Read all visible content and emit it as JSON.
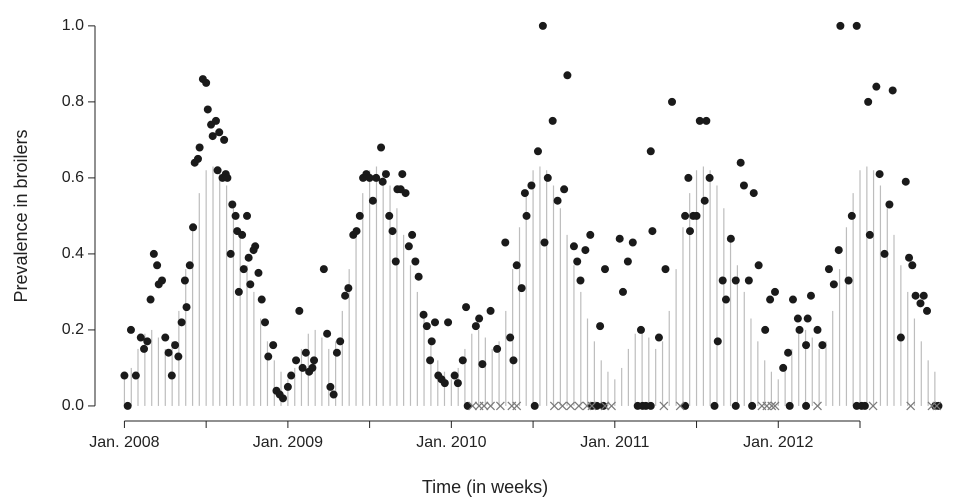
{
  "chart_data": {
    "type": "scatter",
    "xlabel": "Time (in weeks)",
    "ylabel": "Prevalence in broilers",
    "xlim": [
      2007.82,
      2013.02
    ],
    "ylim": [
      -0.037,
      1.047
    ],
    "xticks": [
      {
        "value": 2008,
        "label": "Jan. 2008"
      },
      {
        "value": 2009,
        "label": "Jan. 2009"
      },
      {
        "value": 2010,
        "label": "Jan. 2010"
      },
      {
        "value": 2011,
        "label": "Jan. 2011"
      },
      {
        "value": 2012,
        "label": "Jan. 2012"
      }
    ],
    "xminorticks": [
      2008.5,
      2009.5,
      2010.5,
      2011.5,
      2012.5
    ],
    "yticks": [
      {
        "value": 0,
        "label": "0.0"
      },
      {
        "value": 0.2,
        "label": "0.2"
      },
      {
        "value": 0.4,
        "label": "0.4"
      },
      {
        "value": 0.6,
        "label": "0.6"
      },
      {
        "value": 0.8,
        "label": "0.8"
      },
      {
        "value": 1,
        "label": "1.0"
      }
    ],
    "series": [
      {
        "marker": "stem",
        "color": "#bdbdbd",
        "x": [
          2008,
          2008.042,
          2008.083,
          2008.125,
          2008.167,
          2008.208,
          2008.25,
          2008.292,
          2008.333,
          2008.375,
          2008.417,
          2008.458,
          2008.5,
          2008.542,
          2008.583,
          2008.625,
          2008.667,
          2008.708,
          2008.75,
          2008.792,
          2008.833,
          2008.875,
          2008.917,
          2008.958,
          2009,
          2009.042,
          2009.083,
          2009.125,
          2009.167,
          2009.208,
          2009.25,
          2009.292,
          2009.333,
          2009.375,
          2009.417,
          2009.458,
          2009.5,
          2009.542,
          2009.583,
          2009.625,
          2009.667,
          2009.708,
          2009.75,
          2009.792,
          2009.833,
          2009.875,
          2009.917,
          2009.958,
          2010,
          2010.042,
          2010.083,
          2010.125,
          2010.167,
          2010.208,
          2010.25,
          2010.292,
          2010.333,
          2010.375,
          2010.417,
          2010.458,
          2010.5,
          2010.542,
          2010.583,
          2010.625,
          2010.667,
          2010.708,
          2010.75,
          2010.792,
          2010.833,
          2010.875,
          2010.917,
          2010.958,
          2011,
          2011.042,
          2011.083,
          2011.125,
          2011.167,
          2011.208,
          2011.25,
          2011.292,
          2011.333,
          2011.375,
          2011.417,
          2011.458,
          2011.5,
          2011.542,
          2011.583,
          2011.625,
          2011.667,
          2011.708,
          2011.75,
          2011.792,
          2011.833,
          2011.875,
          2011.917,
          2011.958,
          2012,
          2012.042,
          2012.083,
          2012.125,
          2012.167,
          2012.208,
          2012.25,
          2012.292,
          2012.333,
          2012.375,
          2012.417,
          2012.458,
          2012.5,
          2012.542,
          2012.583,
          2012.625,
          2012.667,
          2012.708,
          2012.75,
          2012.792,
          2012.833,
          2012.875,
          2012.917,
          2012.958
        ],
        "values": [
          0.07,
          0.1,
          0.15,
          0.19,
          0.2,
          0.18,
          0.15,
          0.17,
          0.25,
          0.36,
          0.47,
          0.56,
          0.62,
          0.63,
          0.62,
          0.58,
          0.52,
          0.45,
          0.37,
          0.3,
          0.23,
          0.17,
          0.12,
          0.09,
          0.07,
          0.1,
          0.15,
          0.19,
          0.2,
          0.18,
          0.15,
          0.17,
          0.25,
          0.36,
          0.47,
          0.56,
          0.62,
          0.63,
          0.62,
          0.58,
          0.52,
          0.45,
          0.37,
          0.3,
          0.23,
          0.17,
          0.12,
          0.09,
          0.07,
          0.1,
          0.15,
          0.19,
          0.2,
          0.18,
          0.15,
          0.17,
          0.25,
          0.36,
          0.47,
          0.56,
          0.62,
          0.63,
          0.62,
          0.58,
          0.52,
          0.45,
          0.37,
          0.3,
          0.23,
          0.17,
          0.12,
          0.09,
          0.07,
          0.1,
          0.15,
          0.19,
          0.2,
          0.18,
          0.15,
          0.17,
          0.25,
          0.36,
          0.47,
          0.56,
          0.62,
          0.63,
          0.62,
          0.58,
          0.52,
          0.45,
          0.37,
          0.3,
          0.23,
          0.17,
          0.12,
          0.09,
          0.07,
          0.1,
          0.15,
          0.19,
          0.2,
          0.18,
          0.15,
          0.17,
          0.25,
          0.36,
          0.47,
          0.56,
          0.62,
          0.63,
          0.62,
          0.58,
          0.52,
          0.45,
          0.37,
          0.3,
          0.23,
          0.17,
          0.12,
          0.09
        ]
      },
      {
        "marker": "dot",
        "color": "#1a1a1a",
        "x": [
          2008,
          2008.04,
          2008.07,
          2008.1,
          2008.12,
          2008.14,
          2008.16,
          2008.18,
          2008.2,
          2008.21,
          2008.23,
          2008.25,
          2008.27,
          2008.29,
          2008.31,
          2008.33,
          2008.35,
          2008.37,
          2008.38,
          2008.4,
          2008.42,
          2008.43,
          2008.45,
          2008.46,
          2008.48,
          2008.5,
          2008.51,
          2008.53,
          2008.54,
          2008.56,
          2008.57,
          2008.58,
          2008.6,
          2008.61,
          2008.62,
          2008.63,
          2008.65,
          2008.66,
          2008.68,
          2008.69,
          2008.7,
          2008.72,
          2008.73,
          2008.75,
          2008.76,
          2008.77,
          2008.79,
          2008.8,
          2008.82,
          2008.84,
          2008.86,
          2008.88,
          2008.91,
          2008.93,
          2008.95,
          2008.97,
          2009,
          2009.02,
          2009.05,
          2009.07,
          2009.09,
          2009.11,
          2009.13,
          2009.15,
          2009.16,
          2009.22,
          2009.24,
          2009.26,
          2009.28,
          2009.3,
          2009.32,
          2009.35,
          2009.37,
          2009.4,
          2009.42,
          2009.44,
          2009.46,
          2009.48,
          2009.5,
          2009.52,
          2009.54,
          2009.57,
          2009.58,
          2009.6,
          2009.62,
          2009.64,
          2009.66,
          2009.67,
          2009.69,
          2009.7,
          2009.72,
          2009.74,
          2009.76,
          2009.78,
          2009.8,
          2009.83,
          2009.85,
          2009.87,
          2009.88,
          2009.9,
          2009.92,
          2009.94,
          2009.96,
          2009.98,
          2010.02,
          2010.04,
          2010.07,
          2010.09,
          2010.15,
          2010.17,
          2010.19,
          2010.24,
          2010.28,
          2010.33,
          2010.36,
          2010.38,
          2010.4,
          2010.43,
          2010.45,
          2010.46,
          2010.49,
          2010.53,
          2010.56,
          2010.57,
          2010.59,
          2010.62,
          2010.65,
          2010.69,
          2010.71,
          2010.75,
          2010.77,
          2010.79,
          2010.82,
          2010.85,
          2010.91,
          2010.94,
          2011.03,
          2011.05,
          2011.08,
          2011.11,
          2011.16,
          2011.22,
          2011.23,
          2011.27,
          2011.31,
          2011.35,
          2011.43,
          2011.45,
          2011.46,
          2011.48,
          2011.5,
          2011.52,
          2011.55,
          2011.56,
          2011.58,
          2011.63,
          2011.66,
          2011.68,
          2011.71,
          2011.74,
          2011.77,
          2011.79,
          2011.82,
          2011.85,
          2011.88,
          2011.92,
          2011.95,
          2011.98,
          2012.03,
          2012.06,
          2012.09,
          2012.12,
          2012.13,
          2012.17,
          2012.18,
          2012.2,
          2012.24,
          2012.27,
          2012.31,
          2012.34,
          2012.37,
          2012.38,
          2012.43,
          2012.45,
          2012.48,
          2012.55,
          2012.56,
          2012.6,
          2012.62,
          2012.65,
          2012.68,
          2012.7,
          2012.75,
          2012.78,
          2012.8,
          2012.82,
          2012.84,
          2012.87,
          2012.89,
          2012.91,
          2008.02,
          2010.1,
          2010.51,
          2010.86,
          2010.89,
          2010.93,
          2011.14,
          2011.17,
          2011.19,
          2011.22,
          2011.43,
          2011.61,
          2011.74,
          2011.84,
          2012.07,
          2012.17,
          2012.48,
          2012.51,
          2012.53,
          2012.96,
          2012.98
        ],
        "values": [
          0.08,
          0.2,
          0.08,
          0.18,
          0.15,
          0.17,
          0.28,
          0.4,
          0.37,
          0.32,
          0.33,
          0.18,
          0.14,
          0.08,
          0.16,
          0.13,
          0.22,
          0.33,
          0.26,
          0.37,
          0.47,
          0.64,
          0.65,
          0.68,
          0.86,
          0.85,
          0.78,
          0.74,
          0.71,
          0.75,
          0.62,
          0.72,
          0.6,
          0.7,
          0.61,
          0.6,
          0.4,
          0.53,
          0.5,
          0.46,
          0.3,
          0.45,
          0.36,
          0.5,
          0.39,
          0.32,
          0.41,
          0.42,
          0.35,
          0.28,
          0.22,
          0.13,
          0.16,
          0.04,
          0.03,
          0.02,
          0.05,
          0.08,
          0.12,
          0.25,
          0.1,
          0.14,
          0.09,
          0.1,
          0.12,
          0.36,
          0.19,
          0.05,
          0.03,
          0.14,
          0.17,
          0.29,
          0.31,
          0.45,
          0.46,
          0.5,
          0.6,
          0.61,
          0.6,
          0.54,
          0.6,
          0.68,
          0.59,
          0.61,
          0.5,
          0.46,
          0.38,
          0.57,
          0.57,
          0.61,
          0.56,
          0.42,
          0.45,
          0.38,
          0.34,
          0.24,
          0.21,
          0.12,
          0.17,
          0.22,
          0.08,
          0.07,
          0.06,
          0.22,
          0.08,
          0.06,
          0.12,
          0.26,
          0.21,
          0.23,
          0.11,
          0.25,
          0.15,
          0.43,
          0.18,
          0.12,
          0.37,
          0.31,
          0.56,
          0.5,
          0.58,
          0.67,
          1.0,
          0.43,
          0.6,
          0.75,
          0.54,
          0.57,
          0.87,
          0.42,
          0.38,
          0.33,
          0.41,
          0.45,
          0.21,
          0.36,
          0.44,
          0.3,
          0.38,
          0.43,
          0.2,
          0.67,
          0.46,
          0.18,
          0.36,
          0.8,
          0.5,
          0.6,
          0.46,
          0.5,
          0.5,
          0.75,
          0.54,
          0.75,
          0.6,
          0.17,
          0.33,
          0.28,
          0.44,
          0.33,
          0.64,
          0.58,
          0.33,
          0.56,
          0.37,
          0.2,
          0.28,
          0.3,
          0.1,
          0.14,
          0.28,
          0.23,
          0.2,
          0.16,
          0.23,
          0.29,
          0.2,
          0.16,
          0.36,
          0.32,
          0.41,
          1.0,
          0.33,
          0.5,
          1.0,
          0.8,
          0.45,
          0.84,
          0.61,
          0.4,
          0.53,
          0.83,
          0.18,
          0.59,
          0.39,
          0.37,
          0.29,
          0.27,
          0.29,
          0.25,
          0,
          0,
          0,
          0,
          0,
          0,
          0,
          0,
          0,
          0,
          0,
          0,
          0,
          0,
          0,
          0,
          0,
          0,
          0,
          0,
          0
        ]
      },
      {
        "marker": "x",
        "color": "#7a7a7a",
        "x": [
          2010.13,
          2010.17,
          2010.2,
          2010.24,
          2010.3,
          2010.37,
          2010.4,
          2010.63,
          2010.68,
          2010.73,
          2010.78,
          2010.83,
          2010.86,
          2010.94,
          2010.98,
          2011.3,
          2011.4,
          2011.9,
          2011.93,
          2011.96,
          2011.98,
          2012.24,
          2012.58,
          2012.81,
          2012.94,
          2012.97
        ],
        "values": [
          0,
          0,
          0,
          0,
          0,
          0,
          0,
          0,
          0,
          0,
          0,
          0,
          0,
          0,
          0,
          0,
          0,
          0,
          0,
          0,
          0,
          0,
          0,
          0,
          0,
          0
        ]
      }
    ]
  }
}
